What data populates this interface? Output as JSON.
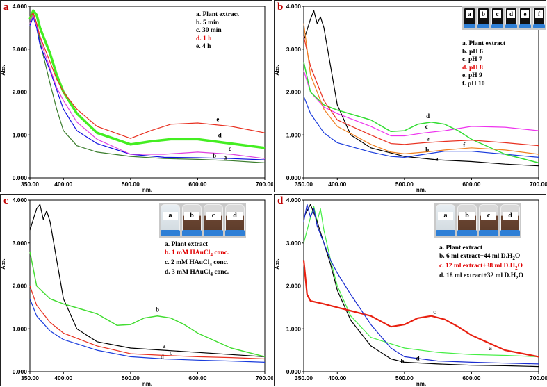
{
  "chart_data": [
    {
      "type": "line",
      "panel_label": "a",
      "xlabel": "nm.",
      "ylabel": "Abs.",
      "xlim": [
        350,
        700
      ],
      "ylim": [
        0,
        4
      ],
      "xticks": [
        "350.00",
        "400.00",
        "500.00",
        "600.00",
        "700.00"
      ],
      "yticks": [
        "0.000",
        "1.000",
        "2.000",
        "3.000",
        "4.000"
      ],
      "legend": [
        {
          "text": "a. Plant extract",
          "color": "#000000"
        },
        {
          "text": "b. 5 min",
          "color": "#000000"
        },
        {
          "text": "c. 30 min",
          "color": "#000000"
        },
        {
          "text": "d. 1 h",
          "color": "#e00000"
        },
        {
          "text": "e. 4 h",
          "color": "#000000"
        }
      ],
      "series": [
        {
          "name": "a",
          "color": "#3a7d2c",
          "width": 1.2,
          "x": [
            350,
            355,
            360,
            365,
            370,
            380,
            390,
            400,
            420,
            450,
            500,
            550,
            600,
            650,
            700
          ],
          "y": [
            3.7,
            3.85,
            3.6,
            3.2,
            2.85,
            2.2,
            1.6,
            1.1,
            0.75,
            0.6,
            0.5,
            0.45,
            0.43,
            0.4,
            0.35
          ]
        },
        {
          "name": "b",
          "color": "#1010e0",
          "width": 1.2,
          "x": [
            350,
            355,
            360,
            365,
            370,
            380,
            390,
            400,
            420,
            450,
            500,
            550,
            600,
            650,
            700
          ],
          "y": [
            3.55,
            3.75,
            3.5,
            3.1,
            2.9,
            2.5,
            2.05,
            1.6,
            1.1,
            0.8,
            0.55,
            0.48,
            0.47,
            0.45,
            0.42
          ]
        },
        {
          "name": "c",
          "color": "#e040e0",
          "width": 1.2,
          "x": [
            350,
            355,
            360,
            365,
            370,
            380,
            390,
            400,
            420,
            450,
            500,
            550,
            600,
            650,
            700
          ],
          "y": [
            3.6,
            3.8,
            3.55,
            3.3,
            3.0,
            2.55,
            2.1,
            1.8,
            1.3,
            0.9,
            0.55,
            0.55,
            0.6,
            0.55,
            0.45
          ]
        },
        {
          "name": "d",
          "color": "#44ee22",
          "width": 3.5,
          "x": [
            350,
            355,
            360,
            365,
            370,
            380,
            390,
            400,
            420,
            450,
            500,
            530,
            560,
            600,
            650,
            700
          ],
          "y": [
            3.7,
            3.9,
            3.8,
            3.5,
            3.3,
            2.9,
            2.4,
            2.0,
            1.5,
            1.05,
            0.78,
            0.85,
            0.9,
            0.9,
            0.8,
            0.7
          ]
        },
        {
          "name": "e",
          "color": "#e83020",
          "width": 1.2,
          "x": [
            350,
            355,
            360,
            365,
            370,
            380,
            390,
            400,
            420,
            450,
            500,
            530,
            560,
            600,
            650,
            700
          ],
          "y": [
            3.75,
            3.85,
            3.6,
            3.3,
            3.1,
            2.7,
            2.3,
            2.0,
            1.6,
            1.2,
            0.92,
            1.1,
            1.25,
            1.28,
            1.2,
            1.05
          ]
        }
      ],
      "curve_labels": [
        {
          "text": "e",
          "x": 630,
          "y": 1.32
        },
        {
          "text": "d",
          "x": 633,
          "y": 0.95
        },
        {
          "text": "c",
          "x": 648,
          "y": 0.63
        },
        {
          "text": "b",
          "x": 625,
          "y": 0.47
        },
        {
          "text": "a",
          "x": 641,
          "y": 0.43
        }
      ]
    },
    {
      "type": "line",
      "panel_label": "b",
      "xlabel": "nm.",
      "ylabel": "Abs.",
      "xlim": [
        350,
        700
      ],
      "ylim": [
        0,
        4
      ],
      "xticks": [
        "350.00",
        "400.00",
        "500.00",
        "600.00",
        "700.00"
      ],
      "yticks": [
        "0.000",
        "1.000",
        "2.000",
        "3.000",
        "4.000"
      ],
      "legend": [
        {
          "text": "a. Plant extract",
          "color": "#000000"
        },
        {
          "text": "b. pH 6",
          "color": "#000000"
        },
        {
          "text": "c. pH 7",
          "color": "#000000"
        },
        {
          "text": "d. pH 8",
          "color": "#e00000"
        },
        {
          "text": "e. pH 9",
          "color": "#000000"
        },
        {
          "text": "f. pH 10",
          "color": "#000000"
        }
      ],
      "vials": [
        "a",
        "b",
        "c",
        "d",
        "e",
        "f"
      ],
      "series": [
        {
          "name": "a",
          "color": "#000000",
          "width": 1.2,
          "x": [
            350,
            360,
            365,
            370,
            375,
            380,
            390,
            400,
            420,
            450,
            500,
            550,
            600,
            650,
            700
          ],
          "y": [
            3.2,
            3.7,
            3.9,
            3.6,
            3.75,
            3.5,
            2.6,
            1.7,
            1.0,
            0.7,
            0.5,
            0.42,
            0.38,
            0.32,
            0.28
          ]
        },
        {
          "name": "b",
          "color": "#1a3cdc",
          "width": 1.2,
          "x": [
            350,
            360,
            380,
            400,
            450,
            480,
            500,
            530,
            560,
            600,
            650,
            700
          ],
          "y": [
            1.9,
            1.5,
            1.05,
            0.82,
            0.6,
            0.5,
            0.48,
            0.55,
            0.62,
            0.62,
            0.55,
            0.48
          ]
        },
        {
          "name": "c",
          "color": "#ee33ee",
          "width": 1.2,
          "x": [
            350,
            360,
            380,
            400,
            450,
            480,
            500,
            530,
            560,
            600,
            650,
            700
          ],
          "y": [
            2.5,
            2.0,
            1.65,
            1.5,
            1.2,
            0.98,
            0.98,
            1.05,
            1.1,
            1.2,
            1.18,
            1.1
          ]
        },
        {
          "name": "d",
          "color": "#33dd33",
          "width": 1.5,
          "x": [
            350,
            360,
            380,
            400,
            450,
            480,
            500,
            520,
            540,
            560,
            580,
            600,
            650,
            700
          ],
          "y": [
            2.7,
            2.0,
            1.7,
            1.58,
            1.35,
            1.08,
            1.1,
            1.25,
            1.3,
            1.25,
            1.1,
            0.9,
            0.55,
            0.35
          ]
        },
        {
          "name": "e",
          "color": "#e83020",
          "width": 1.2,
          "x": [
            350,
            360,
            380,
            400,
            450,
            480,
            500,
            530,
            560,
            600,
            650,
            700
          ],
          "y": [
            3.3,
            2.6,
            1.8,
            1.35,
            1.0,
            0.8,
            0.78,
            0.82,
            0.85,
            0.88,
            0.82,
            0.75
          ]
        },
        {
          "name": "f",
          "color": "#f08020",
          "width": 1.2,
          "x": [
            350,
            360,
            380,
            400,
            450,
            480,
            500,
            530,
            560,
            600,
            650,
            700
          ],
          "y": [
            3.6,
            2.4,
            1.6,
            1.2,
            0.78,
            0.6,
            0.56,
            0.6,
            0.65,
            0.7,
            0.65,
            0.55
          ]
        }
      ],
      "curve_labels": [
        {
          "text": "d",
          "x": 535,
          "y": 1.39
        },
        {
          "text": "c",
          "x": 533,
          "y": 1.15
        },
        {
          "text": "e",
          "x": 535,
          "y": 0.87
        },
        {
          "text": "b",
          "x": 534,
          "y": 0.61
        },
        {
          "text": "f",
          "x": 589,
          "y": 0.72
        },
        {
          "text": "a",
          "x": 548,
          "y": 0.4
        }
      ]
    },
    {
      "type": "line",
      "panel_label": "c",
      "xlabel": "nm.",
      "ylabel": "Abs.",
      "xlim": [
        350,
        700
      ],
      "ylim": [
        0,
        4
      ],
      "xticks": [
        "350.00",
        "400.00",
        "500.00",
        "600.00",
        "700.00"
      ],
      "yticks": [
        "0.000",
        "1.000",
        "2.000",
        "3.000",
        "4.000"
      ],
      "legend": [
        {
          "text": "a. Plant extract",
          "color": "#000000"
        },
        {
          "text": "b. 1 mM HAuCl",
          "sub": "4",
          "tail": " conc.",
          "color": "#e00000"
        },
        {
          "text": "c. 2 mM HAuCl",
          "sub": "4",
          "tail": " conc.",
          "color": "#000000"
        },
        {
          "text": "d. 3 mM HAuCl",
          "sub": "4",
          "tail": " conc.",
          "color": "#000000"
        }
      ],
      "vials": [
        "a",
        "b",
        "c",
        "d"
      ],
      "series": [
        {
          "name": "a",
          "color": "#000000",
          "width": 1.2,
          "x": [
            350,
            360,
            365,
            370,
            375,
            380,
            390,
            400,
            420,
            450,
            500,
            550,
            600,
            650,
            700
          ],
          "y": [
            3.3,
            3.8,
            3.9,
            3.55,
            3.75,
            3.5,
            2.6,
            1.7,
            1.0,
            0.7,
            0.55,
            0.5,
            0.45,
            0.4,
            0.35
          ]
        },
        {
          "name": "b",
          "color": "#44dd33",
          "width": 1.5,
          "x": [
            350,
            360,
            380,
            400,
            450,
            480,
            500,
            520,
            540,
            560,
            580,
            600,
            650,
            700
          ],
          "y": [
            2.8,
            2.0,
            1.7,
            1.58,
            1.35,
            1.08,
            1.1,
            1.25,
            1.3,
            1.25,
            1.1,
            0.9,
            0.55,
            0.35
          ]
        },
        {
          "name": "c",
          "color": "#e83020",
          "width": 1.2,
          "x": [
            350,
            360,
            380,
            400,
            450,
            500,
            550,
            600,
            650,
            700
          ],
          "y": [
            2.0,
            1.55,
            1.15,
            0.9,
            0.6,
            0.42,
            0.38,
            0.35,
            0.33,
            0.3
          ]
        },
        {
          "name": "d",
          "color": "#1a3cdc",
          "width": 1.2,
          "x": [
            350,
            360,
            380,
            400,
            450,
            500,
            550,
            600,
            650,
            700
          ],
          "y": [
            1.7,
            1.3,
            0.95,
            0.75,
            0.5,
            0.35,
            0.3,
            0.27,
            0.25,
            0.22
          ]
        }
      ],
      "curve_labels": [
        {
          "text": "b",
          "x": 540,
          "y": 1.4
        },
        {
          "text": "a",
          "x": 550,
          "y": 0.55
        },
        {
          "text": "c",
          "x": 560,
          "y": 0.4
        },
        {
          "text": "d",
          "x": 547,
          "y": 0.3
        }
      ]
    },
    {
      "type": "line",
      "panel_label": "d",
      "xlabel": "nm.",
      "ylabel": "Abs.",
      "xlim": [
        350,
        700
      ],
      "ylim": [
        0,
        4
      ],
      "xticks": [
        "350.00",
        "400.00",
        "500.00",
        "600.00",
        "700.00"
      ],
      "yticks": [
        "0.000",
        "1.000",
        "2.000",
        "3.000",
        "4.000"
      ],
      "legend": [
        {
          "text": "a. Plant extract",
          "color": "#000000"
        },
        {
          "text": "b. 6 ml extract+44 ml D.H",
          "sub": "2",
          "tail": "O",
          "color": "#000000"
        },
        {
          "text": "c. 12 ml extract+38 ml D.H",
          "sub": "2",
          "tail": "O",
          "color": "#e00000"
        },
        {
          "text": "d. 18 ml extract+32 ml D.H",
          "sub": "2",
          "tail": "O",
          "color": "#000000"
        }
      ],
      "vials": [
        "a",
        "b",
        "c",
        "d"
      ],
      "series": [
        {
          "name": "a",
          "color": "#44ee44",
          "width": 1.2,
          "x": [
            350,
            360,
            365,
            370,
            375,
            380,
            390,
            400,
            420,
            450,
            500,
            550,
            600,
            650,
            700
          ],
          "y": [
            3.0,
            3.6,
            3.85,
            3.5,
            3.8,
            3.3,
            2.6,
            2.0,
            1.3,
            0.8,
            0.55,
            0.45,
            0.4,
            0.38,
            0.35
          ]
        },
        {
          "name": "b",
          "color": "#000000",
          "width": 1.2,
          "x": [
            350,
            360,
            365,
            370,
            380,
            390,
            400,
            420,
            450,
            480,
            500,
            550,
            600,
            650,
            700
          ],
          "y": [
            3.6,
            3.9,
            3.7,
            3.5,
            3.0,
            2.5,
            1.9,
            1.2,
            0.6,
            0.3,
            0.22,
            0.18,
            0.15,
            0.14,
            0.12
          ]
        },
        {
          "name": "c",
          "color": "#e82010",
          "width": 2.2,
          "x": [
            350,
            355,
            360,
            380,
            400,
            450,
            480,
            500,
            520,
            540,
            560,
            580,
            600,
            650,
            700
          ],
          "y": [
            2.6,
            1.8,
            1.65,
            1.58,
            1.5,
            1.3,
            1.05,
            1.1,
            1.25,
            1.3,
            1.22,
            1.05,
            0.85,
            0.5,
            0.35
          ]
        },
        {
          "name": "d",
          "color": "#1a2cd0",
          "width": 1.2,
          "x": [
            350,
            355,
            360,
            365,
            370,
            380,
            390,
            400,
            420,
            450,
            480,
            500,
            550,
            600,
            650,
            700
          ],
          "y": [
            3.5,
            3.9,
            3.6,
            3.8,
            3.4,
            3.0,
            2.6,
            2.3,
            1.8,
            1.1,
            0.55,
            0.35,
            0.25,
            0.22,
            0.2,
            0.18
          ]
        }
      ],
      "curve_labels": [
        {
          "text": "c",
          "x": 545,
          "y": 1.35
        },
        {
          "text": "a",
          "x": 628,
          "y": 0.5
        },
        {
          "text": "b",
          "x": 497,
          "y": 0.2
        },
        {
          "text": "d",
          "x": 520,
          "y": 0.27
        }
      ]
    }
  ]
}
